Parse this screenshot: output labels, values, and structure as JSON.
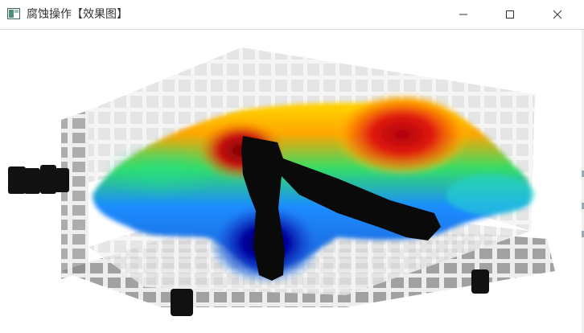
{
  "window": {
    "title": "腐蚀操作【效果图】",
    "app_icon": "image-window-icon",
    "controls": [
      {
        "name": "minimize-button",
        "icon": "minimize-icon"
      },
      {
        "name": "maximize-button",
        "icon": "maximize-icon"
      },
      {
        "name": "close-button",
        "icon": "close-icon"
      }
    ]
  },
  "canvas": {
    "description_type": "processed-image",
    "colors": {
      "high": "#c0001a",
      "mid_high": "#ffdd00",
      "mid": "#33dd66",
      "low": "#1a8cff",
      "lowest": "#00007a",
      "eroded_mark": "#0a0a0a",
      "grid_light": "#e6e6e6",
      "grid_dark": "#7a7a7a"
    }
  }
}
